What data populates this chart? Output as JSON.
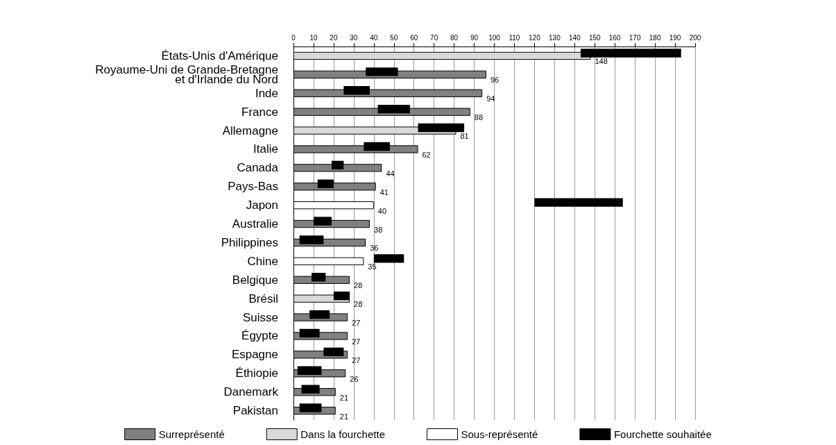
{
  "chart_data": {
    "type": "bar",
    "orientation": "horizontal",
    "categories": [
      "États-Unis d'Amérique",
      "Royaume-Uni de Grande-Bretagne\net d'Irlande du Nord",
      "Inde",
      "France",
      "Allemagne",
      "Italie",
      "Canada",
      "Pays-Bas",
      "Japon",
      "Australie",
      "Philippines",
      "Chine",
      "Belgique",
      "Brésil",
      "Suisse",
      "Égypte",
      "Espagne",
      "Éthiopie",
      "Danemark",
      "Pakistan"
    ],
    "series": [
      {
        "name": "Surreprésenté",
        "color": "#808080",
        "values": [
          null,
          96,
          94,
          88,
          null,
          62,
          44,
          41,
          null,
          38,
          36,
          null,
          28,
          null,
          27,
          27,
          27,
          26,
          21,
          21
        ],
        "value_labels": [
          null,
          "96",
          "94",
          "88",
          null,
          "62",
          "44",
          "41",
          null,
          "38",
          "36",
          null,
          "28",
          null,
          "27",
          "27",
          "27",
          "26",
          "21",
          "21"
        ]
      },
      {
        "name": "Dans la fourchette",
        "color": "#d9d9d9",
        "values": [
          148,
          null,
          null,
          null,
          81,
          null,
          null,
          null,
          null,
          null,
          null,
          null,
          null,
          28,
          null,
          null,
          null,
          null,
          null,
          null
        ],
        "value_labels": [
          "148",
          null,
          null,
          null,
          "81",
          null,
          null,
          null,
          null,
          null,
          null,
          null,
          null,
          "28",
          null,
          null,
          null,
          null,
          null,
          null
        ]
      },
      {
        "name": "Sous-représenté",
        "color": "#ffffff",
        "values": [
          null,
          null,
          null,
          null,
          null,
          null,
          null,
          null,
          40,
          null,
          null,
          35,
          null,
          null,
          null,
          null,
          null,
          null,
          null,
          null
        ],
        "value_labels": [
          null,
          null,
          null,
          null,
          null,
          null,
          null,
          null,
          "40",
          null,
          null,
          "35",
          null,
          null,
          null,
          null,
          null,
          null,
          null,
          null
        ]
      },
      {
        "name": "Fourchette souhaitée",
        "color": "#000000",
        "base": [
          143,
          36,
          25,
          42,
          62,
          35,
          19,
          12,
          120,
          10,
          3,
          40,
          9,
          20,
          8,
          3,
          15,
          2,
          4,
          3
        ],
        "values": [
          50,
          16,
          13,
          16,
          23,
          13,
          6,
          8,
          44,
          9,
          12,
          15,
          7,
          8,
          10,
          10,
          10,
          12,
          9,
          11
        ]
      }
    ],
    "xlim": [
      0,
      200
    ],
    "xticks": [
      0,
      10,
      20,
      30,
      40,
      50,
      60,
      70,
      80,
      90,
      100,
      110,
      120,
      130,
      140,
      150,
      160,
      170,
      180,
      190,
      200
    ],
    "grid": "x",
    "legend": "bottom"
  }
}
